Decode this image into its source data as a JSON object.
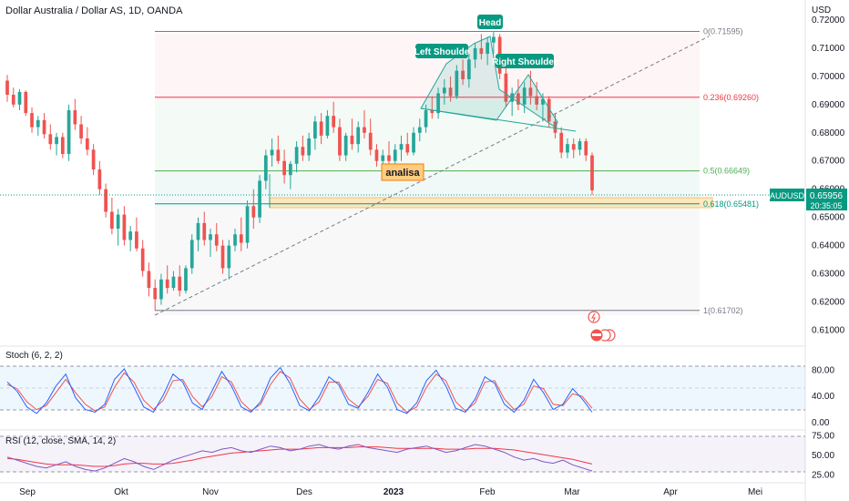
{
  "header": {
    "title": "Dollar Australia / Dollar AS, 1D, OANDA"
  },
  "currency": "USD",
  "colors": {
    "up": "#26a69a",
    "down": "#ef5350",
    "wedge": "#26a69a",
    "accent": "#2962ff"
  },
  "price_axis": {
    "ticks": [
      "0.72000",
      "0.71000",
      "0.70000",
      "0.69000",
      "0.68000",
      "0.67000",
      "0.66000",
      "0.65000",
      "0.64000",
      "0.63000",
      "0.62000",
      "0.61000"
    ]
  },
  "time_axis": {
    "labels": [
      "Sep",
      "Okt",
      "Nov",
      "Des",
      "2023",
      "Feb",
      "Mar",
      "Apr",
      "Mei"
    ]
  },
  "current_price": {
    "symbol": "AUDUSD",
    "value": "0.65956",
    "countdown": "20:35:05"
  },
  "fib_levels": [
    {
      "label": "0(0.71595)",
      "value": 0.71595,
      "color": "#787b86"
    },
    {
      "label": "0.236(0.69260)",
      "value": 0.6926,
      "color": "#f23645"
    },
    {
      "label": "0.5(0.66649)",
      "value": 0.66649,
      "color": "#4caf50"
    },
    {
      "label": "0.618(0.65481)",
      "value": 0.65481,
      "color": "#089981"
    },
    {
      "label": "1(0.61702)",
      "value": 0.61702,
      "color": "#787b86"
    }
  ],
  "annotations": {
    "head": "Head",
    "left_shoulder": "Left Shoulde",
    "right_shoulder": "Right Shoulder",
    "analisa": "analisa"
  },
  "stoch": {
    "label": "Stoch (6, 2, 2)",
    "ticks": [
      "80.00",
      "40.00",
      "0.00"
    ],
    "k_values": [
      62,
      48,
      24,
      14,
      30,
      56,
      74,
      38,
      20,
      16,
      28,
      66,
      82,
      54,
      24,
      16,
      42,
      74,
      62,
      30,
      20,
      48,
      78,
      56,
      24,
      16,
      32,
      68,
      84,
      60,
      26,
      18,
      40,
      70,
      58,
      28,
      22,
      46,
      74,
      54,
      20,
      14,
      30,
      64,
      80,
      56,
      22,
      16,
      36,
      70,
      60,
      28,
      16,
      34,
      66,
      46,
      20,
      28,
      52,
      36,
      16
    ],
    "d_values": [
      58,
      52,
      32,
      20,
      26,
      46,
      66,
      46,
      28,
      18,
      24,
      54,
      76,
      62,
      34,
      20,
      34,
      64,
      66,
      40,
      24,
      40,
      70,
      62,
      32,
      18,
      28,
      58,
      78,
      68,
      36,
      20,
      32,
      62,
      62,
      36,
      24,
      40,
      66,
      60,
      30,
      16,
      24,
      54,
      74,
      64,
      32,
      18,
      30,
      62,
      64,
      36,
      20,
      28,
      56,
      52,
      28,
      26,
      44,
      40,
      22
    ],
    "colors": {
      "k": "#2962ff",
      "d": "#ef5350"
    }
  },
  "rsi": {
    "label": "RSI (12, close, SMA, 14, 2)",
    "ticks": [
      "75.00",
      "50.00",
      "25.00"
    ],
    "values": [
      48,
      44,
      40,
      36,
      34,
      38,
      42,
      36,
      32,
      30,
      34,
      40,
      46,
      42,
      36,
      32,
      38,
      44,
      48,
      52,
      56,
      54,
      58,
      60,
      56,
      54,
      58,
      62,
      60,
      56,
      58,
      62,
      64,
      60,
      58,
      62,
      64,
      60,
      58,
      56,
      54,
      58,
      60,
      62,
      58,
      54,
      56,
      60,
      64,
      62,
      58,
      54,
      48,
      44,
      46,
      42,
      40,
      44,
      38,
      34,
      30
    ],
    "sma_values": [
      46,
      45,
      43,
      41,
      39,
      38,
      38,
      38,
      37,
      36,
      36,
      37,
      39,
      40,
      40,
      39,
      39,
      40,
      42,
      44,
      47,
      49,
      51,
      53,
      54,
      55,
      56,
      57,
      58,
      58,
      58,
      59,
      60,
      60,
      60,
      60,
      61,
      61,
      61,
      60,
      59,
      59,
      59,
      59,
      59,
      58,
      58,
      58,
      59,
      59,
      59,
      58,
      57,
      55,
      53,
      51,
      49,
      47,
      45,
      42,
      39
    ],
    "colors": {
      "rsi": "#7e57c2",
      "sma": "#f23645"
    }
  },
  "chart_data": {
    "type": "candlestick",
    "title": "Dollar Australia / Dollar AS, 1D, OANDA",
    "ylim": [
      0.605,
      0.7245
    ],
    "x_labels": [
      "Sep",
      "Okt",
      "Nov",
      "Des",
      "2023",
      "Feb",
      "Mar",
      "Apr",
      "Mei"
    ],
    "candles": [
      [
        0.6985,
        0.7005,
        0.691,
        0.6935
      ],
      [
        0.6935,
        0.696,
        0.689,
        0.69
      ],
      [
        0.69,
        0.6955,
        0.688,
        0.6945
      ],
      [
        0.6945,
        0.695,
        0.686,
        0.687
      ],
      [
        0.687,
        0.689,
        0.68,
        0.682
      ],
      [
        0.682,
        0.686,
        0.679,
        0.6845
      ],
      [
        0.6845,
        0.687,
        0.678,
        0.6795
      ],
      [
        0.6795,
        0.683,
        0.674,
        0.676
      ],
      [
        0.676,
        0.68,
        0.672,
        0.6785
      ],
      [
        0.6785,
        0.68,
        0.671,
        0.6725
      ],
      [
        0.6725,
        0.69,
        0.67,
        0.688
      ],
      [
        0.688,
        0.692,
        0.681,
        0.683
      ],
      [
        0.683,
        0.686,
        0.676,
        0.678
      ],
      [
        0.678,
        0.682,
        0.672,
        0.674
      ],
      [
        0.674,
        0.676,
        0.665,
        0.667
      ],
      [
        0.667,
        0.67,
        0.658,
        0.66
      ],
      [
        0.66,
        0.662,
        0.65,
        0.652
      ],
      [
        0.652,
        0.657,
        0.644,
        0.646
      ],
      [
        0.646,
        0.653,
        0.64,
        0.651
      ],
      [
        0.651,
        0.654,
        0.64,
        0.642
      ],
      [
        0.642,
        0.647,
        0.638,
        0.645
      ],
      [
        0.645,
        0.65,
        0.638,
        0.639
      ],
      [
        0.639,
        0.642,
        0.629,
        0.631
      ],
      [
        0.631,
        0.634,
        0.622,
        0.625
      ],
      [
        0.625,
        0.628,
        0.617,
        0.621
      ],
      [
        0.621,
        0.63,
        0.619,
        0.628
      ],
      [
        0.628,
        0.633,
        0.623,
        0.625
      ],
      [
        0.625,
        0.631,
        0.624,
        0.629
      ],
      [
        0.629,
        0.633,
        0.622,
        0.624
      ],
      [
        0.624,
        0.633,
        0.623,
        0.632
      ],
      [
        0.632,
        0.644,
        0.63,
        0.642
      ],
      [
        0.642,
        0.65,
        0.638,
        0.648
      ],
      [
        0.648,
        0.652,
        0.64,
        0.642
      ],
      [
        0.642,
        0.646,
        0.636,
        0.644
      ],
      [
        0.644,
        0.648,
        0.638,
        0.64
      ],
      [
        0.64,
        0.642,
        0.63,
        0.632
      ],
      [
        0.632,
        0.642,
        0.628,
        0.64
      ],
      [
        0.64,
        0.646,
        0.638,
        0.644
      ],
      [
        0.644,
        0.65,
        0.638,
        0.641
      ],
      [
        0.641,
        0.656,
        0.639,
        0.654
      ],
      [
        0.654,
        0.66,
        0.646,
        0.65
      ],
      [
        0.65,
        0.665,
        0.648,
        0.663
      ],
      [
        0.663,
        0.674,
        0.66,
        0.672
      ],
      [
        0.672,
        0.678,
        0.668,
        0.674
      ],
      [
        0.674,
        0.679,
        0.669,
        0.67
      ],
      [
        0.67,
        0.674,
        0.662,
        0.665
      ],
      [
        0.665,
        0.67,
        0.66,
        0.669
      ],
      [
        0.669,
        0.677,
        0.666,
        0.675
      ],
      [
        0.675,
        0.679,
        0.67,
        0.672
      ],
      [
        0.672,
        0.68,
        0.67,
        0.678
      ],
      [
        0.678,
        0.686,
        0.674,
        0.684
      ],
      [
        0.684,
        0.687,
        0.676,
        0.679
      ],
      [
        0.679,
        0.688,
        0.678,
        0.686
      ],
      [
        0.686,
        0.691,
        0.68,
        0.682
      ],
      [
        0.682,
        0.685,
        0.67,
        0.672
      ],
      [
        0.672,
        0.68,
        0.67,
        0.679
      ],
      [
        0.679,
        0.685,
        0.674,
        0.676
      ],
      [
        0.676,
        0.684,
        0.673,
        0.682
      ],
      [
        0.682,
        0.688,
        0.678,
        0.68
      ],
      [
        0.68,
        0.685,
        0.672,
        0.674
      ],
      [
        0.674,
        0.676,
        0.668,
        0.67
      ],
      [
        0.67,
        0.674,
        0.666,
        0.672
      ],
      [
        0.672,
        0.677,
        0.669,
        0.67
      ],
      [
        0.67,
        0.676,
        0.668,
        0.674
      ],
      [
        0.674,
        0.679,
        0.67,
        0.676
      ],
      [
        0.676,
        0.68,
        0.672,
        0.673
      ],
      [
        0.673,
        0.682,
        0.672,
        0.68
      ],
      [
        0.68,
        0.685,
        0.677,
        0.682
      ],
      [
        0.682,
        0.69,
        0.68,
        0.688
      ],
      [
        0.688,
        0.693,
        0.685,
        0.687
      ],
      [
        0.687,
        0.696,
        0.685,
        0.694
      ],
      [
        0.694,
        0.699,
        0.69,
        0.696
      ],
      [
        0.696,
        0.7,
        0.691,
        0.693
      ],
      [
        0.693,
        0.704,
        0.692,
        0.702
      ],
      [
        0.702,
        0.706,
        0.697,
        0.699
      ],
      [
        0.699,
        0.708,
        0.696,
        0.706
      ],
      [
        0.706,
        0.712,
        0.703,
        0.71
      ],
      [
        0.71,
        0.715,
        0.706,
        0.708
      ],
      [
        0.708,
        0.714,
        0.704,
        0.712
      ],
      [
        0.712,
        0.716,
        0.708,
        0.714
      ],
      [
        0.714,
        0.715,
        0.699,
        0.701
      ],
      [
        0.701,
        0.706,
        0.689,
        0.691
      ],
      [
        0.691,
        0.696,
        0.686,
        0.694
      ],
      [
        0.694,
        0.699,
        0.688,
        0.69
      ],
      [
        0.69,
        0.698,
        0.687,
        0.696
      ],
      [
        0.696,
        0.702,
        0.69,
        0.693
      ],
      [
        0.693,
        0.698,
        0.688,
        0.69
      ],
      [
        0.69,
        0.694,
        0.684,
        0.692
      ],
      [
        0.692,
        0.693,
        0.682,
        0.684
      ],
      [
        0.684,
        0.687,
        0.678,
        0.68
      ],
      [
        0.68,
        0.682,
        0.671,
        0.673
      ],
      [
        0.673,
        0.678,
        0.671,
        0.676
      ],
      [
        0.676,
        0.678,
        0.671,
        0.674
      ],
      [
        0.674,
        0.678,
        0.672,
        0.677
      ],
      [
        0.677,
        0.678,
        0.67,
        0.672
      ],
      [
        0.672,
        0.673,
        0.658,
        0.6596
      ]
    ]
  }
}
